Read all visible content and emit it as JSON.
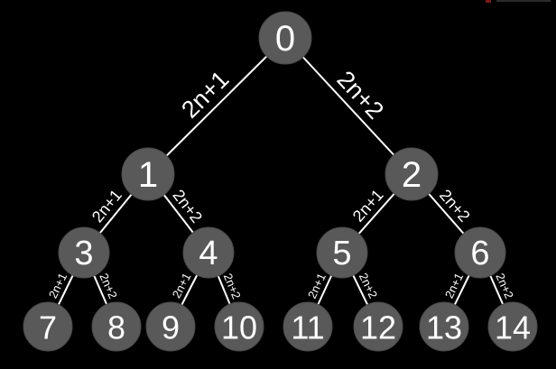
{
  "diagram": {
    "type": "binary-tree-array-indexing",
    "colors": {
      "background": "#000000",
      "node_fill": "#595959",
      "edge_and_text": "#ffffff"
    },
    "nodes": [
      {
        "id": "0",
        "label": "0",
        "level": 0
      },
      {
        "id": "1",
        "label": "1",
        "level": 1
      },
      {
        "id": "2",
        "label": "2",
        "level": 1
      },
      {
        "id": "3",
        "label": "3",
        "level": 2
      },
      {
        "id": "4",
        "label": "4",
        "level": 2
      },
      {
        "id": "5",
        "label": "5",
        "level": 2
      },
      {
        "id": "6",
        "label": "6",
        "level": 2
      },
      {
        "id": "7",
        "label": "7",
        "level": 3
      },
      {
        "id": "8",
        "label": "8",
        "level": 3
      },
      {
        "id": "9",
        "label": "9",
        "level": 3
      },
      {
        "id": "10",
        "label": "10",
        "level": 3
      },
      {
        "id": "11",
        "label": "11",
        "level": 3
      },
      {
        "id": "12",
        "label": "12",
        "level": 3
      },
      {
        "id": "13",
        "label": "13",
        "level": 3
      },
      {
        "id": "14",
        "label": "14",
        "level": 3
      }
    ],
    "edges": [
      {
        "from": "0",
        "to": "1",
        "label": "2n+1"
      },
      {
        "from": "0",
        "to": "2",
        "label": "2n+2"
      },
      {
        "from": "1",
        "to": "3",
        "label": "2n+1"
      },
      {
        "from": "1",
        "to": "4",
        "label": "2n+2"
      },
      {
        "from": "2",
        "to": "5",
        "label": "2n+1"
      },
      {
        "from": "2",
        "to": "6",
        "label": "2n+2"
      },
      {
        "from": "3",
        "to": "7",
        "label": "2n+1"
      },
      {
        "from": "3",
        "to": "8",
        "label": "2n+2"
      },
      {
        "from": "4",
        "to": "9",
        "label": "2n+1"
      },
      {
        "from": "4",
        "to": "10",
        "label": "2n+2"
      },
      {
        "from": "5",
        "to": "11",
        "label": "2n+1"
      },
      {
        "from": "5",
        "to": "12",
        "label": "2n+2"
      },
      {
        "from": "6",
        "to": "13",
        "label": "2n+1"
      },
      {
        "from": "6",
        "to": "14",
        "label": "2n+2"
      }
    ]
  }
}
